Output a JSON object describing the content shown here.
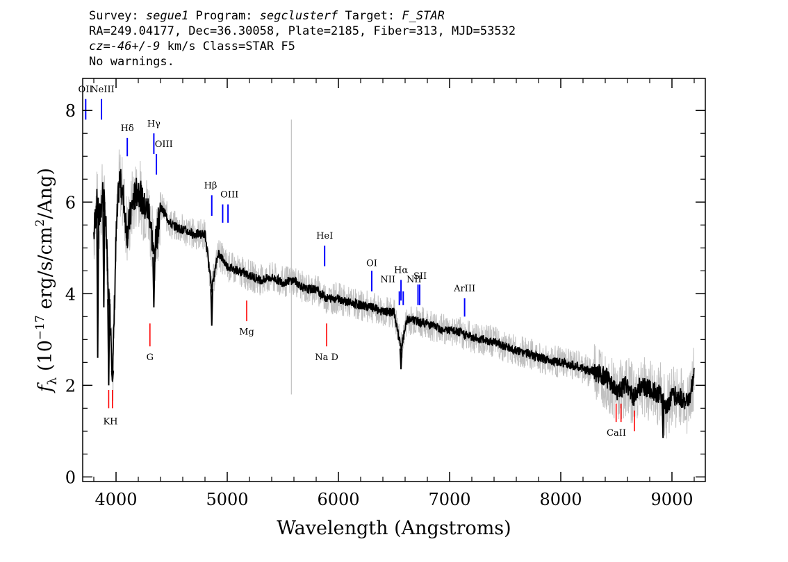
{
  "header": {
    "survey_label": "Survey: ",
    "survey": "segue1",
    "program_label": " Program: ",
    "program": "segclusterf",
    "target_label": " Target: ",
    "target": "F_STAR",
    "line2": "RA=249.04177, Dec=36.30058, Plate=2185, Fiber=313, MJD=53532",
    "cz_label": "cz=",
    "cz_value": "-46+/-9",
    "cz_rest": " km/s Class=STAR F5",
    "line4": "No warnings."
  },
  "chart_data": {
    "type": "line",
    "xlabel": "Wavelength (Angstroms)",
    "ylabel": "f_λ (10^-17 erg/s/cm^2/Ang)",
    "ylabel_parts": {
      "f": "f",
      "sub": "λ",
      "pre": " (10",
      "exp1": "−17",
      "mid": " erg/s/cm",
      "exp2": "2",
      "post": "/Ang)"
    },
    "xlim": [
      3700,
      9300
    ],
    "ylim": [
      -0.1,
      8.7
    ],
    "xticks": [
      4000,
      5000,
      6000,
      7000,
      8000,
      9000
    ],
    "yticks": [
      0,
      2,
      4,
      6,
      8
    ],
    "colors": {
      "flux": "#000000",
      "error_band": "#c0c0c0",
      "emission": "#0000ff",
      "absorption": "#ff0000"
    },
    "series": [
      {
        "x": [
          3800,
          3825,
          3850,
          3880,
          3905,
          3930,
          3950,
          3970,
          4000,
          4030,
          4060,
          4101,
          4150,
          4200,
          4250,
          4300,
          4340,
          4400,
          4500,
          4600,
          4700,
          4800,
          4861,
          4920,
          5000,
          5100,
          5200,
          5300,
          5400,
          5500,
          5600,
          5700,
          5800,
          5893,
          6000,
          6100,
          6200,
          6300,
          6400,
          6500,
          6563,
          6620,
          6700,
          6800,
          6900,
          7000,
          7100,
          7200,
          7300,
          7400,
          7500,
          7600,
          7700,
          7800,
          7900,
          8000,
          8100,
          8200,
          8300,
          8400,
          8498,
          8542,
          8600,
          8662,
          8700,
          8800,
          8900,
          8950,
          9000,
          9100,
          9150,
          9200
        ],
        "y": [
          5.3,
          6.0,
          5.6,
          6.2,
          5.7,
          4.0,
          3.4,
          2.2,
          5.2,
          6.5,
          6.2,
          5.3,
          6.0,
          6.3,
          5.9,
          5.8,
          4.8,
          5.9,
          5.5,
          5.4,
          5.3,
          5.3,
          4.1,
          4.9,
          4.6,
          4.5,
          4.4,
          4.3,
          4.35,
          4.25,
          4.3,
          4.1,
          4.1,
          3.9,
          3.9,
          3.8,
          3.75,
          3.7,
          3.6,
          3.6,
          2.8,
          3.45,
          3.4,
          3.35,
          3.25,
          3.2,
          3.15,
          3.05,
          3.0,
          2.95,
          2.85,
          2.75,
          2.7,
          2.6,
          2.55,
          2.5,
          2.45,
          2.35,
          2.3,
          2.2,
          1.85,
          1.95,
          2.0,
          1.7,
          2.0,
          1.9,
          1.8,
          1.5,
          1.8,
          1.7,
          1.6,
          2.2
        ]
      }
    ],
    "spikes": [
      {
        "x": 3835,
        "y": 2.6
      },
      {
        "x": 3890,
        "y": 3.7
      },
      {
        "x": 3934,
        "y": 2.0
      },
      {
        "x": 3968,
        "y": 2.1
      },
      {
        "x": 4340,
        "y": 3.7
      },
      {
        "x": 4861,
        "y": 3.3
      },
      {
        "x": 6563,
        "y": 2.35
      },
      {
        "x": 8920,
        "y": 0.85
      }
    ],
    "error_spike": {
      "x": 5577,
      "y_low": 1.8,
      "y_high": 7.8
    },
    "emission_lines": [
      {
        "label": "OII",
        "wave": 3727,
        "y0": 7.8,
        "y1": 8.25
      },
      {
        "label": "NeIII",
        "wave": 3869,
        "y0": 7.8,
        "y1": 8.25
      },
      {
        "label": "Hδ",
        "wave": 4101,
        "y0": 7.0,
        "y1": 7.4
      },
      {
        "label": "Hγ",
        "wave": 4340,
        "y0": 7.05,
        "y1": 7.5
      },
      {
        "label": "OIII",
        "wave": 4363,
        "y0": 6.6,
        "y1": 7.05
      },
      {
        "label": "Hβ",
        "wave": 4861,
        "y0": 5.7,
        "y1": 6.15
      },
      {
        "label": "OIII",
        "wave": 4959,
        "y0": 5.55,
        "y1": 5.95
      },
      {
        "label": "OIII",
        "wave": 5007,
        "y0": 5.55,
        "y1": 5.95
      },
      {
        "label": "HeI",
        "wave": 5876,
        "y0": 4.6,
        "y1": 5.05
      },
      {
        "label": "OI",
        "wave": 6300,
        "y0": 4.05,
        "y1": 4.5
      },
      {
        "label": "NII",
        "wave": 6548,
        "y0": 3.75,
        "y1": 4.05
      },
      {
        "label": "Hα",
        "wave": 6563,
        "y0": 3.85,
        "y1": 4.3
      },
      {
        "label": "NII",
        "wave": 6583,
        "y0": 3.75,
        "y1": 4.05
      },
      {
        "label": "SII",
        "wave": 6716,
        "y0": 3.75,
        "y1": 4.2
      },
      {
        "label": "SII",
        "wave": 6731,
        "y0": 3.75,
        "y1": 4.2
      },
      {
        "label": "ArIII",
        "wave": 7135,
        "y0": 3.5,
        "y1": 3.9
      }
    ],
    "emission_labels": [
      {
        "text": "OII",
        "wave": 3725,
        "y": 8.4
      },
      {
        "text": "NeIII",
        "wave": 3878,
        "y": 8.4
      },
      {
        "text": "Hδ",
        "wave": 4101,
        "y": 7.55
      },
      {
        "text": "Hγ",
        "wave": 4340,
        "y": 7.65
      },
      {
        "text": "OIII",
        "wave": 4430,
        "y": 7.2
      },
      {
        "text": "Hβ",
        "wave": 4850,
        "y": 6.3
      },
      {
        "text": "OIII",
        "wave": 5020,
        "y": 6.1
      },
      {
        "text": "HeI",
        "wave": 5876,
        "y": 5.2
      },
      {
        "text": "OI",
        "wave": 6300,
        "y": 4.6
      },
      {
        "text": "NII",
        "wave": 6445,
        "y": 4.25
      },
      {
        "text": "Hα",
        "wave": 6563,
        "y": 4.45
      },
      {
        "text": "NII",
        "wave": 6680,
        "y": 4.25
      },
      {
        "text": "SII",
        "wave": 6735,
        "y": 4.32
      },
      {
        "text": "ArIII",
        "wave": 7135,
        "y": 4.05
      }
    ],
    "absorption_lines": [
      {
        "label": "K",
        "wave": 3934,
        "y0": 1.5,
        "y1": 1.9
      },
      {
        "label": "H",
        "wave": 3968,
        "y0": 1.5,
        "y1": 1.9
      },
      {
        "label": "G",
        "wave": 4305,
        "y0": 2.85,
        "y1": 3.35
      },
      {
        "label": "Mg",
        "wave": 5175,
        "y0": 3.4,
        "y1": 3.85
      },
      {
        "label": "Na D",
        "wave": 5894,
        "y0": 2.85,
        "y1": 3.35
      },
      {
        "label": "CaII",
        "wave": 8498,
        "y0": 1.2,
        "y1": 1.6
      },
      {
        "label": "CaII",
        "wave": 8542,
        "y0": 1.2,
        "y1": 1.6
      },
      {
        "label": "CaII",
        "wave": 8662,
        "y0": 1.0,
        "y1": 1.45
      }
    ],
    "absorption_labels": [
      {
        "text": "KH",
        "wave": 3950,
        "y": 1.15
      },
      {
        "text": "G",
        "wave": 4305,
        "y": 2.55
      },
      {
        "text": "Mg",
        "wave": 5175,
        "y": 3.1
      },
      {
        "text": "Na D",
        "wave": 5894,
        "y": 2.55
      },
      {
        "text": "CaII",
        "wave": 8500,
        "y": 0.9
      }
    ]
  }
}
